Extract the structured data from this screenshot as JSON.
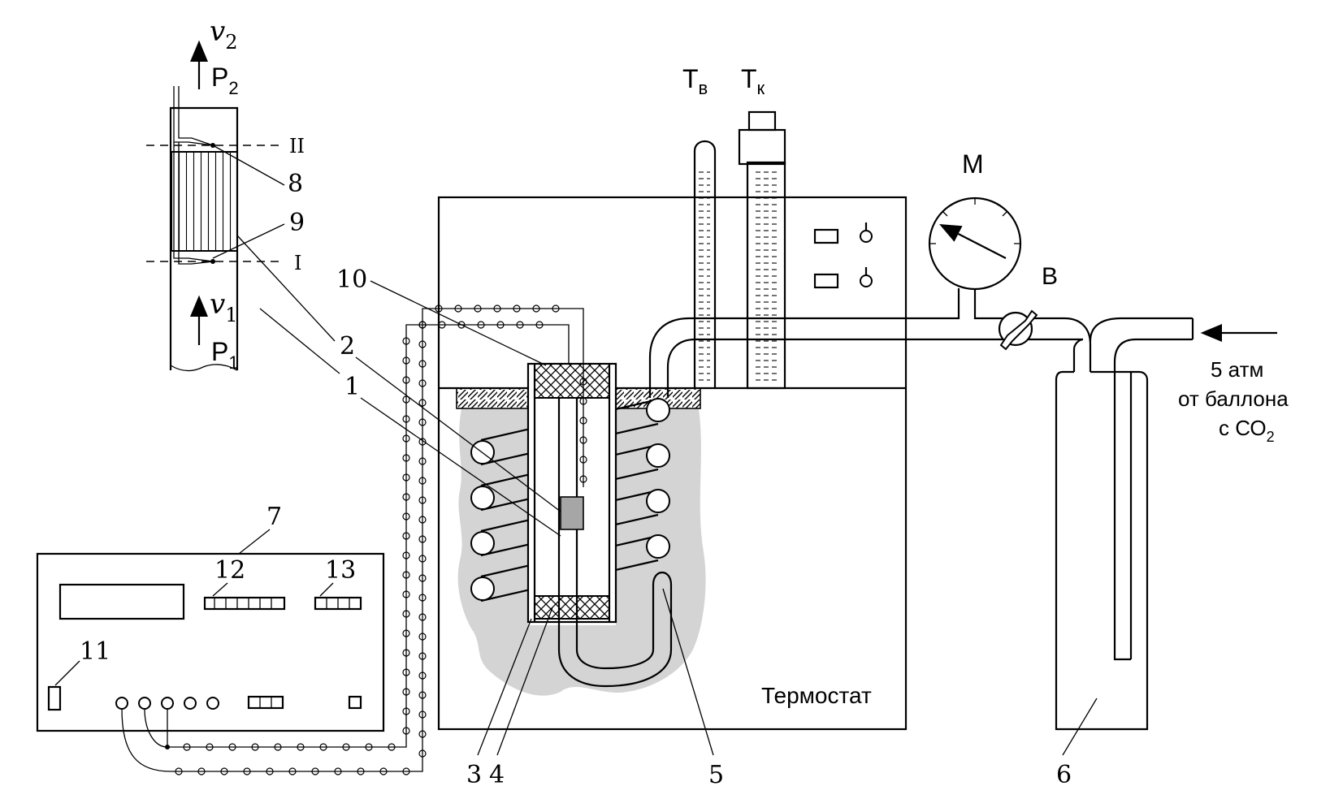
{
  "inset": {
    "v2": "v",
    "v2_sub": "2",
    "p2": "P",
    "p2_sub": "2",
    "v1": "v",
    "v1_sub": "1",
    "p1": "P",
    "p1_sub": "1",
    "section_upper": "II",
    "section_lower": "I",
    "label_8": "8",
    "label_9": "9"
  },
  "labels": {
    "n1": "1",
    "n2": "2",
    "n3": "3",
    "n4": "4",
    "n5": "5",
    "n6": "6",
    "n7": "7",
    "n10": "10",
    "n11": "11",
    "n12": "12",
    "n13": "13"
  },
  "thermometers": {
    "tb": "Т",
    "tb_sub": "в",
    "tk": "Т",
    "tk_sub": "к"
  },
  "manometer_label": "М",
  "valve_label": "В",
  "thermostat_label": "Термостат",
  "gas_source": {
    "line1": "5 атм",
    "line2": "от баллона",
    "line3": "с СО",
    "line3_sub": "2"
  }
}
